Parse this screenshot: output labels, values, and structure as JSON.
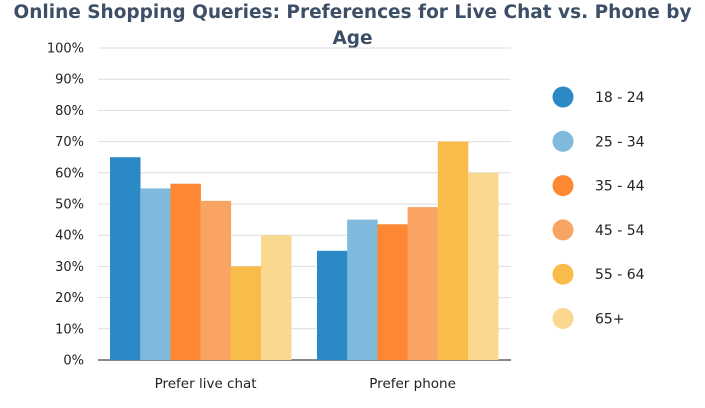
{
  "chart_data": {
    "type": "bar",
    "title": "Online Shopping Queries: Preferences for Live Chat vs. Phone by Age",
    "categories": [
      "Prefer live chat",
      "Prefer phone"
    ],
    "series": [
      {
        "name": "18 - 24",
        "color": "#2b8ac6",
        "values": [
          65,
          35
        ]
      },
      {
        "name": "25 - 34",
        "color": "#7fb9dc",
        "values": [
          55,
          45
        ]
      },
      {
        "name": "35 - 44",
        "color": "#fd8733",
        "values": [
          56.5,
          43.5
        ]
      },
      {
        "name": "45 - 54",
        "color": "#f9a462",
        "values": [
          51,
          49
        ]
      },
      {
        "name": "55 - 64",
        "color": "#f9bb4a",
        "values": [
          30,
          70
        ]
      },
      {
        "name": "65+",
        "color": "#fad890",
        "values": [
          40,
          60
        ]
      }
    ],
    "ylim": [
      0,
      100
    ],
    "yticks": [
      "0%",
      "10%",
      "20%",
      "30%",
      "40%",
      "50%",
      "60%",
      "70%",
      "80%",
      "90%",
      "100%"
    ],
    "xlabel": "",
    "ylabel": "",
    "grid": true,
    "legend": "right"
  }
}
